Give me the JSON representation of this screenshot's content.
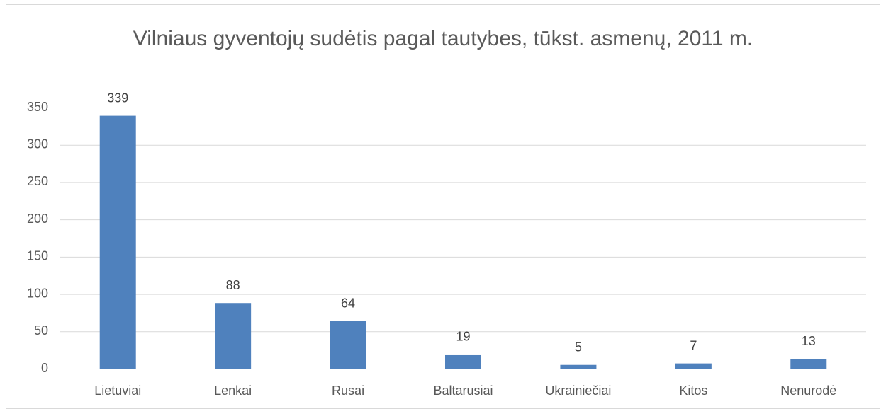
{
  "chart_data": {
    "type": "bar",
    "title": "Vilniaus gyventojų sudėtis pagal tautybes, tūkst. asmenų, 2011 m.",
    "categories": [
      "Lietuviai",
      "Lenkai",
      "Rusai",
      "Baltarusiai",
      "Ukrainiečiai",
      "Kitos",
      "Nenurodė"
    ],
    "values": [
      339,
      88,
      64,
      19,
      5,
      7,
      13
    ],
    "color": "#4f81bd",
    "ylim": [
      0,
      350
    ],
    "yticks": [
      0,
      50,
      100,
      150,
      200,
      250,
      300,
      350
    ],
    "grid": true
  }
}
